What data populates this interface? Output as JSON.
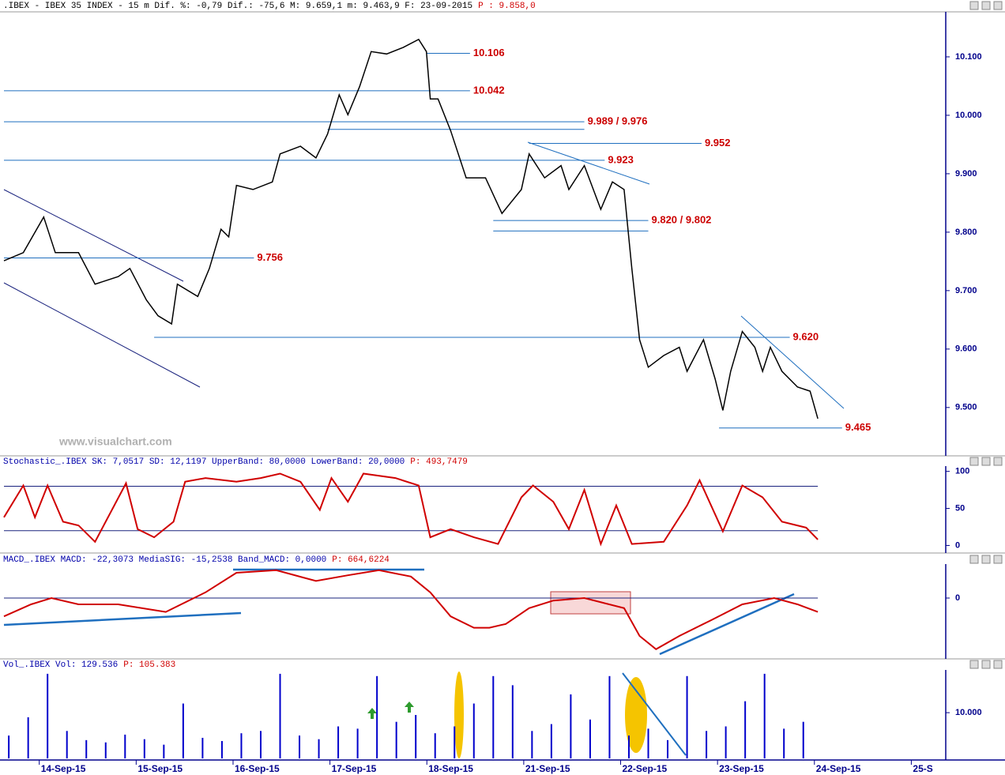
{
  "chart_data": [
    {
      "type": "line",
      "title": ".IBEX - IBEX 35 INDEX -  15 m Dif. %: -0,79 Dif.: -75,6 M: 9.659,1 m: 9.463,9 F: 23-09-2015",
      "subtitle": "P : 9.858,0",
      "watermark": "www.visualchart.com",
      "xlim": [
        -0.65,
        9.07
      ],
      "ylim": [
        9420,
        10177
      ],
      "yticks": [
        {
          "value": 9500,
          "label": "9.500"
        },
        {
          "value": 9600,
          "label": "9.600"
        },
        {
          "value": 9700,
          "label": "9.700"
        },
        {
          "value": 9800,
          "label": "9.800"
        },
        {
          "value": 9900,
          "label": "9.900"
        },
        {
          "value": 10000,
          "label": "10.000"
        },
        {
          "value": 10100,
          "label": "10.100"
        }
      ],
      "series": [
        {
          "color": "#000000",
          "x": [
            -0.65,
            -0.45,
            -0.24,
            -0.12,
            0.12,
            0.29,
            0.53,
            0.65,
            0.82,
            0.94,
            1.08,
            1.14,
            1.35,
            1.47,
            1.59,
            1.67,
            1.75,
            1.92,
            2.12,
            2.2,
            2.41,
            2.57,
            2.69,
            2.81,
            2.9,
            3.02,
            3.14,
            3.3,
            3.47,
            3.63,
            3.71,
            3.75,
            3.83,
            3.96,
            4.12,
            4.32,
            4.49,
            4.69,
            4.77,
            4.93,
            5.1,
            5.18,
            5.34,
            5.51,
            5.63,
            5.75,
            5.79,
            5.83,
            5.91,
            6.0,
            6.16,
            6.32,
            6.4,
            6.57,
            6.69,
            6.77,
            6.85,
            6.97,
            7.1,
            7.18,
            7.26,
            7.38,
            7.54,
            7.67,
            7.75
          ],
          "values": [
            9751,
            9765,
            9826,
            9765,
            9765,
            9711,
            9724,
            9738,
            9684,
            9657,
            9643,
            9711,
            9690,
            9738,
            9805,
            9792,
            9880,
            9873,
            9886,
            9934,
            9947,
            9927,
            9968,
            10035,
            10001,
            10049,
            10109,
            10105,
            10116,
            10130,
            10109,
            10028,
            10028,
            9974,
            9893,
            9893,
            9832,
            9873,
            9934,
            9893,
            9914,
            9873,
            9914,
            9839,
            9886,
            9873,
            9805,
            9738,
            9616,
            9569,
            9589,
            9603,
            9562,
            9616,
            9549,
            9495,
            9562,
            9630,
            9603,
            9562,
            9603,
            9562,
            9535,
            9528,
            9481
          ]
        }
      ],
      "levels": [
        {
          "label": "10.106",
          "lines": [
            {
              "value": 10106,
              "x": [
                3.71,
                4.16
              ]
            }
          ]
        },
        {
          "label": "10.042",
          "lines": [
            {
              "value": 10042,
              "x": [
                -0.65,
                4.16
              ]
            }
          ]
        },
        {
          "label": "9.989 / 9.976",
          "lines": [
            {
              "value": 9989,
              "x": [
                -0.65,
                5.34
              ]
            },
            {
              "value": 9976,
              "x": [
                2.69,
                5.34
              ]
            }
          ]
        },
        {
          "label": "9.952",
          "lines": [
            {
              "value": 9952,
              "x": [
                4.77,
                6.55
              ]
            }
          ]
        },
        {
          "label": "9.923",
          "lines": [
            {
              "value": 9923,
              "x": [
                -0.65,
                5.55
              ]
            }
          ]
        },
        {
          "label": "9.820 / 9.802",
          "lines": [
            {
              "value": 9820,
              "x": [
                4.4,
                6.0
              ]
            },
            {
              "value": 9802,
              "x": [
                4.4,
                6.0
              ]
            }
          ]
        },
        {
          "label": "9.756",
          "lines": [
            {
              "value": 9756,
              "x": [
                -0.65,
                1.93
              ]
            }
          ]
        },
        {
          "label": "9.620",
          "lines": [
            {
              "value": 9620,
              "x": [
                0.9,
                7.46
              ]
            }
          ]
        },
        {
          "label": "9.465",
          "lines": [
            {
              "value": 9465,
              "x": [
                6.73,
                8.0
              ]
            }
          ]
        }
      ]
    },
    {
      "type": "line",
      "title": "Stochastic_.IBEX SK: 7,0517 SD: 12,1197 UpperBand: 80,0000 LowerBand: 20,0000",
      "subtitle": "P: 493,7479",
      "xlim": [
        -0.65,
        9.07
      ],
      "ylim": [
        -7,
        105
      ],
      "yticks": [
        0,
        50,
        100
      ],
      "bands": [
        80,
        20
      ],
      "series": [
        {
          "color": "#d00000",
          "x": [
            -0.65,
            -0.45,
            -0.33,
            -0.2,
            -0.04,
            0.12,
            0.29,
            0.61,
            0.73,
            0.9,
            1.1,
            1.22,
            1.43,
            1.75,
            2.0,
            2.2,
            2.41,
            2.61,
            2.73,
            2.9,
            3.06,
            3.39,
            3.63,
            3.75,
            3.96,
            4.2,
            4.45,
            4.69,
            4.81,
            5.02,
            5.18,
            5.34,
            5.51,
            5.67,
            5.83,
            6.16,
            6.4,
            6.53,
            6.77,
            6.97,
            7.18,
            7.38,
            7.63,
            7.75
          ],
          "values": [
            38,
            81,
            38,
            81,
            32,
            27,
            5,
            84,
            22,
            11,
            32,
            86,
            91,
            86,
            91,
            97,
            86,
            48,
            91,
            59,
            97,
            91,
            81,
            11,
            22,
            11,
            2,
            65,
            81,
            59,
            22,
            75,
            2,
            54,
            2,
            5,
            54,
            88,
            19,
            81,
            65,
            32,
            24,
            8
          ]
        }
      ]
    },
    {
      "type": "line",
      "title": "MACD_.IBEX MACD: -22,3073 MediaSIG: -15,2538 Band_MACD: 0,0000",
      "subtitle": "P: 664,6224",
      "xlim": [
        -0.65,
        9.07
      ],
      "ylim": [
        -95,
        50
      ],
      "yticks": [
        0
      ],
      "grid": true,
      "series": [
        {
          "color": "#d00000",
          "x": [
            -0.65,
            -0.37,
            -0.16,
            0.12,
            0.53,
            1.02,
            1.43,
            1.75,
            2.16,
            2.57,
            2.9,
            3.22,
            3.55,
            3.75,
            3.96,
            4.2,
            4.36,
            4.53,
            4.77,
            5.02,
            5.34,
            5.75,
            5.91,
            6.08,
            6.32,
            6.65,
            6.97,
            7.3,
            7.54,
            7.75
          ],
          "values": [
            -29,
            -10,
            0,
            -10,
            -10,
            -22,
            9,
            40,
            44,
            27,
            36,
            44,
            34,
            9,
            -29,
            -47,
            -47,
            -41,
            -16,
            -4,
            0,
            -16,
            -60,
            -81,
            -60,
            -35,
            -10,
            0,
            -10,
            -22
          ]
        }
      ]
    },
    {
      "type": "bar",
      "title": "Vol_.IBEX Vol: 129.536",
      "subtitle": "P: 105.383",
      "xlim": [
        -0.65,
        9.07
      ],
      "ylim": [
        0,
        19000
      ],
      "yticks": [
        {
          "value": 10000,
          "label": "10.000"
        }
      ],
      "xticks": [
        {
          "value": 0,
          "label": "14-Sep-15"
        },
        {
          "value": 1,
          "label": "15-Sep-15"
        },
        {
          "value": 2,
          "label": "16-Sep-15"
        },
        {
          "value": 3,
          "label": "17-Sep-15"
        },
        {
          "value": 4,
          "label": "18-Sep-15"
        },
        {
          "value": 5,
          "label": "21-Sep-15"
        },
        {
          "value": 6,
          "label": "22-Sep-15"
        },
        {
          "value": 7,
          "label": "23-Sep-15"
        },
        {
          "value": 8,
          "label": "24-Sep-15"
        },
        {
          "value": 9,
          "label": "25-S"
        }
      ],
      "series": [
        {
          "color": "#0000cc",
          "x": [
            -0.6,
            -0.4,
            -0.2,
            0,
            0.2,
            0.4,
            0.6,
            0.8,
            1,
            1.2,
            1.4,
            1.6,
            1.8,
            2,
            2.2,
            2.4,
            2.6,
            2.8,
            3,
            3.2,
            3.4,
            3.6,
            3.8,
            4,
            4.2,
            4.4,
            4.6,
            4.8,
            5,
            5.2,
            5.4,
            5.6,
            5.8,
            6,
            6.2,
            6.4,
            6.6,
            6.8,
            7,
            7.2,
            7.4,
            7.6
          ],
          "values": [
            5000,
            9000,
            18500,
            6000,
            4000,
            3500,
            5200,
            4200,
            3000,
            12000,
            4500,
            3800,
            5500,
            6000,
            18500,
            5000,
            4200,
            7000,
            6500,
            18000,
            8000,
            9500,
            5500,
            7000,
            12000,
            18000,
            16000,
            6000,
            7500,
            14000,
            8500,
            18000,
            5000,
            6500,
            4000,
            18000,
            6000,
            7000,
            12500,
            18500,
            6500,
            8000
          ]
        }
      ]
    }
  ]
}
